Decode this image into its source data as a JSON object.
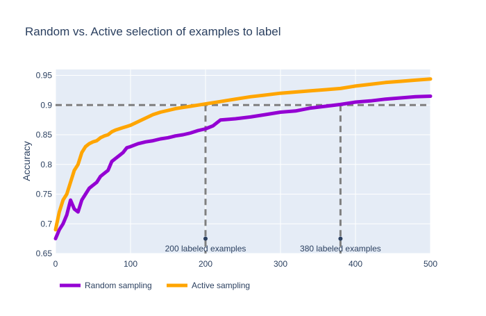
{
  "chart_data": {
    "type": "line",
    "title": "Random vs. Active selection of examples to label",
    "xlabel": "",
    "ylabel": "Accuracy",
    "xlim": [
      0,
      500
    ],
    "ylim": [
      0.65,
      0.96
    ],
    "x_ticks": [
      0,
      100,
      200,
      300,
      400,
      500
    ],
    "y_ticks": [
      0.65,
      0.7,
      0.75,
      0.8,
      0.85,
      0.9,
      0.95
    ],
    "y_tick_labels": [
      "0.65",
      "0.7",
      "0.75",
      "0.8",
      "0.85",
      "0.9",
      "0.95"
    ],
    "grid": true,
    "legend_position": "bottom-left",
    "series": [
      {
        "name": "Random sampling",
        "color": "#9400D3",
        "x": [
          0,
          5,
          10,
          15,
          20,
          25,
          30,
          35,
          40,
          45,
          50,
          55,
          60,
          65,
          70,
          75,
          80,
          85,
          90,
          95,
          100,
          110,
          120,
          130,
          140,
          150,
          160,
          170,
          180,
          190,
          200,
          210,
          220,
          240,
          260,
          280,
          300,
          320,
          340,
          360,
          380,
          400,
          420,
          440,
          460,
          480,
          500
        ],
        "values": [
          0.675,
          0.69,
          0.7,
          0.715,
          0.74,
          0.725,
          0.72,
          0.74,
          0.75,
          0.76,
          0.765,
          0.77,
          0.78,
          0.785,
          0.79,
          0.805,
          0.81,
          0.815,
          0.82,
          0.828,
          0.83,
          0.835,
          0.838,
          0.84,
          0.843,
          0.845,
          0.848,
          0.85,
          0.853,
          0.857,
          0.86,
          0.865,
          0.875,
          0.877,
          0.88,
          0.884,
          0.888,
          0.89,
          0.895,
          0.898,
          0.901,
          0.905,
          0.907,
          0.91,
          0.912,
          0.914,
          0.915
        ]
      },
      {
        "name": "Active sampling",
        "color": "#FFA500",
        "x": [
          0,
          5,
          10,
          15,
          20,
          25,
          30,
          35,
          40,
          45,
          50,
          55,
          60,
          65,
          70,
          75,
          80,
          85,
          90,
          95,
          100,
          110,
          120,
          130,
          140,
          150,
          160,
          170,
          180,
          190,
          200,
          220,
          240,
          260,
          280,
          300,
          320,
          340,
          360,
          380,
          400,
          420,
          440,
          460,
          480,
          500
        ],
        "values": [
          0.69,
          0.72,
          0.74,
          0.75,
          0.77,
          0.79,
          0.8,
          0.82,
          0.83,
          0.835,
          0.838,
          0.84,
          0.845,
          0.848,
          0.85,
          0.855,
          0.858,
          0.86,
          0.862,
          0.864,
          0.866,
          0.872,
          0.878,
          0.884,
          0.888,
          0.891,
          0.894,
          0.896,
          0.898,
          0.9,
          0.902,
          0.906,
          0.91,
          0.914,
          0.917,
          0.92,
          0.922,
          0.924,
          0.926,
          0.928,
          0.932,
          0.935,
          0.938,
          0.94,
          0.942,
          0.944
        ]
      }
    ],
    "reference_lines": {
      "color": "#7f7f7f",
      "horizontal_y": 0.9,
      "vertical_x": [
        200,
        380
      ],
      "marker_y": 0.675
    },
    "annotations": [
      {
        "x": 200,
        "text": "200 labeled examples"
      },
      {
        "x": 380,
        "text": "380 labeled examples"
      }
    ],
    "colors": {
      "plot_background": "#E5ECF6",
      "grid": "#ffffff",
      "text": "#2a3f5f"
    }
  }
}
